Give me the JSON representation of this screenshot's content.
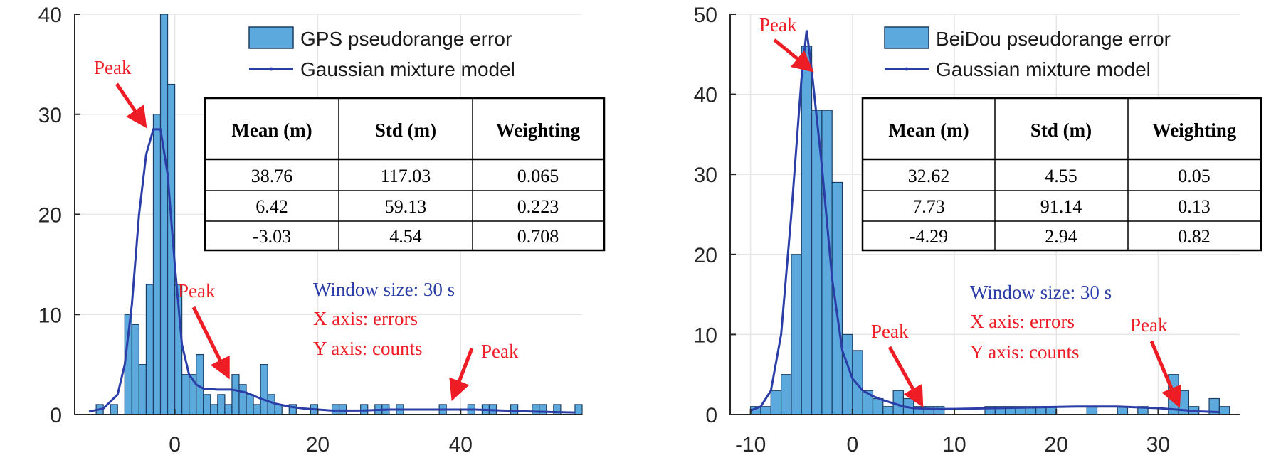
{
  "colors": {
    "bar_fill": "#5ca9dd",
    "bar_edge": "#1d3d63",
    "curve": "#2b3ea8",
    "annotation_red": "#ee1c24",
    "annotation_blue": "#2b3ea8",
    "grid": "#e6e6e6",
    "axis": "#262626"
  },
  "chart_data": [
    {
      "type": "bar",
      "xlim": [
        -14,
        57
      ],
      "ylim": [
        0,
        40
      ],
      "xticks": [
        0,
        20,
        40
      ],
      "yticks": [
        0,
        10,
        20,
        30,
        40
      ],
      "bin_width": 1,
      "bins": [
        [
          -11,
          1
        ],
        [
          -9,
          1
        ],
        [
          -7,
          10
        ],
        [
          -6,
          9
        ],
        [
          -5,
          5
        ],
        [
          -4,
          13
        ],
        [
          -3,
          30
        ],
        [
          -2,
          40
        ],
        [
          -1,
          33
        ],
        [
          0,
          13
        ],
        [
          1,
          4
        ],
        [
          2,
          4
        ],
        [
          3,
          6
        ],
        [
          4,
          2
        ],
        [
          5,
          1
        ],
        [
          6,
          2
        ],
        [
          7,
          1
        ],
        [
          8,
          4
        ],
        [
          9,
          3
        ],
        [
          10,
          2
        ],
        [
          11,
          1
        ],
        [
          12,
          5
        ],
        [
          13,
          2
        ],
        [
          14,
          1
        ],
        [
          16,
          1
        ],
        [
          19,
          1
        ],
        [
          22,
          1
        ],
        [
          23,
          1
        ],
        [
          26,
          1
        ],
        [
          28,
          1
        ],
        [
          29,
          1
        ],
        [
          31,
          1
        ],
        [
          37,
          1
        ],
        [
          41,
          1
        ],
        [
          43,
          1
        ],
        [
          44,
          1
        ],
        [
          47,
          1
        ],
        [
          50,
          1
        ],
        [
          51,
          1
        ],
        [
          53,
          1
        ],
        [
          56,
          1
        ]
      ],
      "curve": [
        [
          -12,
          0.3
        ],
        [
          -10,
          0.6
        ],
        [
          -8,
          2
        ],
        [
          -7,
          5
        ],
        [
          -6,
          11
        ],
        [
          -5,
          20
        ],
        [
          -4,
          26
        ],
        [
          -3,
          28.5
        ],
        [
          -2,
          28.5
        ],
        [
          -1,
          24
        ],
        [
          0,
          15
        ],
        [
          1,
          7
        ],
        [
          2,
          4
        ],
        [
          3,
          3
        ],
        [
          4,
          2.6
        ],
        [
          6,
          2.5
        ],
        [
          8,
          2.5
        ],
        [
          10,
          2.2
        ],
        [
          12,
          1.6
        ],
        [
          14,
          1.1
        ],
        [
          16,
          0.8
        ],
        [
          18,
          0.6
        ],
        [
          22,
          0.4
        ],
        [
          26,
          0.4
        ],
        [
          30,
          0.5
        ],
        [
          34,
          0.5
        ],
        [
          38,
          0.5
        ],
        [
          42,
          0.5
        ],
        [
          46,
          0.4
        ],
        [
          50,
          0.3
        ],
        [
          56,
          0.2
        ]
      ],
      "legend": {
        "histogram": "GPS pseudorange error",
        "curve": "Gaussian mixture model"
      },
      "table": {
        "headers": [
          "Mean (m)",
          "Std (m)",
          "Weighting"
        ],
        "rows": [
          [
            "38.76",
            "117.03",
            "0.065"
          ],
          [
            "6.42",
            "59.13",
            "0.223"
          ],
          [
            "-3.03",
            "4.54",
            "0.708"
          ]
        ]
      },
      "annotations": {
        "window": "Window size: 30 s",
        "xaxis": "X axis: errors",
        "yaxis": "Y axis: counts",
        "peak_labels": [
          "Peak",
          "Peak",
          "Peak"
        ]
      }
    },
    {
      "type": "bar",
      "xlim": [
        -12,
        38
      ],
      "ylim": [
        0,
        50
      ],
      "xticks": [
        -10,
        0,
        10,
        20,
        30
      ],
      "yticks": [
        0,
        10,
        20,
        30,
        40,
        50
      ],
      "bin_width": 1,
      "bins": [
        [
          -10,
          1
        ],
        [
          -9,
          1
        ],
        [
          -8,
          3
        ],
        [
          -7,
          5
        ],
        [
          -6,
          20
        ],
        [
          -5,
          46
        ],
        [
          -4,
          38
        ],
        [
          -3,
          38
        ],
        [
          -2,
          29
        ],
        [
          -1,
          10
        ],
        [
          0,
          8
        ],
        [
          1,
          3
        ],
        [
          2,
          2
        ],
        [
          3,
          1
        ],
        [
          4,
          3
        ],
        [
          5,
          2
        ],
        [
          6,
          1
        ],
        [
          7,
          1
        ],
        [
          8,
          1
        ],
        [
          13,
          1
        ],
        [
          14,
          1
        ],
        [
          15,
          1
        ],
        [
          16,
          1
        ],
        [
          17,
          1
        ],
        [
          18,
          1
        ],
        [
          19,
          1
        ],
        [
          23,
          1
        ],
        [
          26,
          1
        ],
        [
          28,
          1
        ],
        [
          31,
          5
        ],
        [
          32,
          3
        ],
        [
          33,
          1
        ],
        [
          35,
          2
        ],
        [
          36,
          1
        ]
      ],
      "curve": [
        [
          -10,
          0.5
        ],
        [
          -9,
          1
        ],
        [
          -8,
          3
        ],
        [
          -7,
          10
        ],
        [
          -6,
          25
        ],
        [
          -5,
          42
        ],
        [
          -4.5,
          48
        ],
        [
          -4,
          43
        ],
        [
          -3,
          31
        ],
        [
          -2,
          17
        ],
        [
          -1,
          8
        ],
        [
          0,
          4.5
        ],
        [
          1,
          3
        ],
        [
          2,
          2.3
        ],
        [
          3,
          1.8
        ],
        [
          4,
          1.4
        ],
        [
          5,
          1.0
        ],
        [
          6,
          0.8
        ],
        [
          8,
          0.7
        ],
        [
          10,
          0.7
        ],
        [
          14,
          0.8
        ],
        [
          18,
          0.9
        ],
        [
          22,
          1.0
        ],
        [
          26,
          1.0
        ],
        [
          30,
          0.8
        ],
        [
          32,
          0.6
        ],
        [
          34,
          0.4
        ],
        [
          36,
          0.3
        ]
      ],
      "legend": {
        "histogram": "BeiDou pseudorange error",
        "curve": "Gaussian mixture model"
      },
      "table": {
        "headers": [
          "Mean (m)",
          "Std (m)",
          "Weighting"
        ],
        "rows": [
          [
            "32.62",
            "4.55",
            "0.05"
          ],
          [
            "7.73",
            "91.14",
            "0.13"
          ],
          [
            "-4.29",
            "2.94",
            "0.82"
          ]
        ]
      },
      "annotations": {
        "window": "Window size: 30 s",
        "xaxis": "X axis: errors",
        "yaxis": "Y axis: counts",
        "peak_labels": [
          "Peak",
          "Peak",
          "Peak"
        ]
      }
    }
  ]
}
